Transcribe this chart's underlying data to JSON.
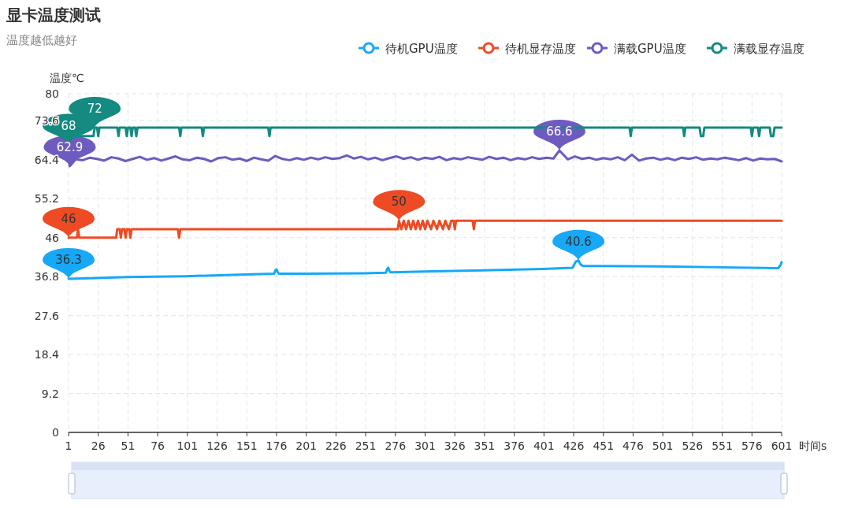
{
  "chart_data": {
    "type": "line",
    "title": "显卡温度测试",
    "subtitle": "温度越低越好",
    "xlabel": "时间s",
    "ylabel": "温度℃",
    "xlim": [
      1,
      601
    ],
    "xticks": [
      1,
      26,
      51,
      76,
      101,
      126,
      151,
      176,
      201,
      226,
      251,
      276,
      301,
      326,
      351,
      376,
      401,
      426,
      451,
      476,
      501,
      526,
      551,
      576,
      601
    ],
    "ylim": [
      0,
      80
    ],
    "yticks": [
      0,
      9.2,
      18.4,
      27.6,
      36.8,
      46,
      55.2,
      64.4,
      73.6,
      80
    ],
    "grid": true,
    "legend": "top right",
    "marker": "none",
    "line_style": "solid",
    "series": [
      {
        "name": "待机GPU温度",
        "color": "#17a8f8",
        "x": [
          1,
          20,
          50,
          100,
          150,
          174,
          175,
          176,
          177,
          178,
          200,
          250,
          268,
          269,
          270,
          271,
          272,
          300,
          350,
          400,
          425,
          428,
          430,
          432,
          434,
          450,
          500,
          550,
          598,
          600,
          601
        ],
        "values": [
          36.3,
          36.4,
          36.7,
          36.9,
          37.3,
          37.5,
          38.3,
          38.5,
          37.8,
          37.5,
          37.5,
          37.6,
          37.7,
          38.6,
          38.9,
          38.1,
          37.8,
          38.0,
          38.3,
          38.6,
          38.9,
          40.4,
          40.6,
          39.6,
          39.3,
          39.3,
          39.2,
          39.0,
          38.8,
          39.5,
          40.2
        ]
      },
      {
        "name": "待机显存温度",
        "color": "#ee4b24",
        "x": [
          1,
          8,
          9,
          10,
          41,
          42,
          44,
          45,
          46,
          48,
          49,
          50,
          52,
          53,
          54,
          93,
          94,
          95,
          278,
          279,
          281,
          283,
          285,
          287,
          289,
          291,
          293,
          295,
          297,
          299,
          301,
          303,
          306,
          308,
          311,
          313,
          316,
          318,
          321,
          323,
          325,
          326,
          327,
          341,
          342,
          343,
          601
        ],
        "values": [
          46,
          46,
          48,
          46,
          46,
          48,
          48,
          46,
          48,
          48,
          46,
          48,
          48,
          46,
          48,
          48,
          46,
          48,
          48,
          50,
          48,
          50,
          48,
          50,
          48,
          50,
          48,
          50,
          48,
          50,
          48,
          50,
          48,
          50,
          48,
          50,
          48,
          50,
          48,
          50,
          50,
          48,
          50,
          50,
          48,
          50,
          50
        ]
      },
      {
        "name": "满载GPU温度",
        "color": "#6e5bc0",
        "x": [
          1,
          2,
          7,
          13,
          19,
          25,
          31,
          37,
          43,
          49,
          55,
          61,
          67,
          73,
          79,
          85,
          91,
          97,
          103,
          109,
          115,
          121,
          127,
          133,
          139,
          145,
          151,
          157,
          163,
          169,
          175,
          181,
          187,
          193,
          199,
          205,
          211,
          217,
          223,
          229,
          235,
          241,
          247,
          253,
          259,
          265,
          271,
          277,
          283,
          289,
          295,
          301,
          307,
          313,
          319,
          325,
          331,
          337,
          343,
          349,
          355,
          361,
          367,
          373,
          379,
          385,
          391,
          397,
          403,
          409,
          414,
          421,
          427,
          433,
          439,
          445,
          451,
          457,
          463,
          469,
          475,
          481,
          487,
          493,
          499,
          505,
          511,
          517,
          523,
          529,
          535,
          541,
          547,
          553,
          559,
          565,
          571,
          577,
          583,
          589,
          595,
          601
        ],
        "values": [
          64.8,
          62.9,
          64.5,
          64.3,
          64.9,
          64.6,
          64.2,
          65.0,
          64.7,
          64.1,
          64.6,
          65.1,
          64.4,
          64.8,
          64.2,
          64.7,
          65.2,
          64.5,
          64.3,
          64.9,
          64.6,
          64.0,
          64.8,
          65.0,
          64.4,
          64.7,
          64.1,
          64.9,
          64.5,
          64.2,
          65.3,
          64.6,
          64.3,
          64.8,
          64.4,
          64.9,
          64.5,
          65.0,
          64.6,
          64.8,
          65.4,
          64.7,
          65.1,
          64.5,
          64.9,
          64.3,
          64.8,
          65.2,
          64.6,
          65.0,
          64.4,
          64.9,
          64.6,
          65.1,
          64.3,
          64.8,
          64.5,
          65.0,
          64.7,
          64.4,
          65.1,
          64.6,
          64.9,
          64.3,
          64.8,
          64.5,
          65.0,
          64.6,
          64.9,
          64.7,
          66.6,
          64.5,
          65.2,
          64.6,
          64.9,
          64.4,
          64.8,
          64.5,
          65.0,
          64.3,
          65.6,
          64.2,
          64.7,
          64.9,
          64.4,
          64.8,
          64.3,
          64.9,
          64.6,
          65.0,
          64.4,
          64.7,
          64.5,
          64.9,
          64.6,
          64.3,
          64.8,
          64.2,
          64.7,
          64.5,
          64.6,
          64.0
        ]
      },
      {
        "name": "满载显存温度",
        "color": "#148a80",
        "x": [
          1,
          3,
          22,
          23,
          25,
          26,
          27,
          42,
          43,
          44,
          49,
          50,
          51,
          53,
          54,
          55,
          57,
          58,
          59,
          94,
          95,
          96,
          113,
          114,
          115,
          169,
          170,
          171,
          473,
          474,
          475,
          518,
          519,
          520,
          532,
          533,
          535,
          536,
          575,
          576,
          577,
          581,
          582,
          583,
          591,
          592,
          594,
          595,
          601
        ],
        "values": [
          68,
          70,
          70,
          72,
          72,
          70,
          72,
          72,
          70,
          72,
          72,
          70,
          72,
          72,
          70,
          72,
          72,
          70,
          72,
          72,
          70,
          72,
          72,
          70,
          72,
          72,
          70,
          72,
          72,
          70,
          72,
          72,
          70,
          72,
          72,
          70,
          70,
          72,
          72,
          70,
          72,
          72,
          70,
          72,
          72,
          70,
          70,
          72,
          72
        ]
      }
    ],
    "annotations": [
      {
        "text": "36.3",
        "x": 1,
        "y": 36.3
      },
      {
        "text": "40.6",
        "x": 430,
        "y": 40.6
      },
      {
        "text": "46",
        "x": 1,
        "y": 46
      },
      {
        "text": "50",
        "x": 279,
        "y": 50
      },
      {
        "text": "62.9",
        "x": 2,
        "y": 62.9
      },
      {
        "text": "66.6",
        "x": 414,
        "y": 66.6
      },
      {
        "text": "68",
        "x": 1,
        "y": 68
      },
      {
        "text": "72",
        "x": 23,
        "y": 72
      }
    ]
  }
}
